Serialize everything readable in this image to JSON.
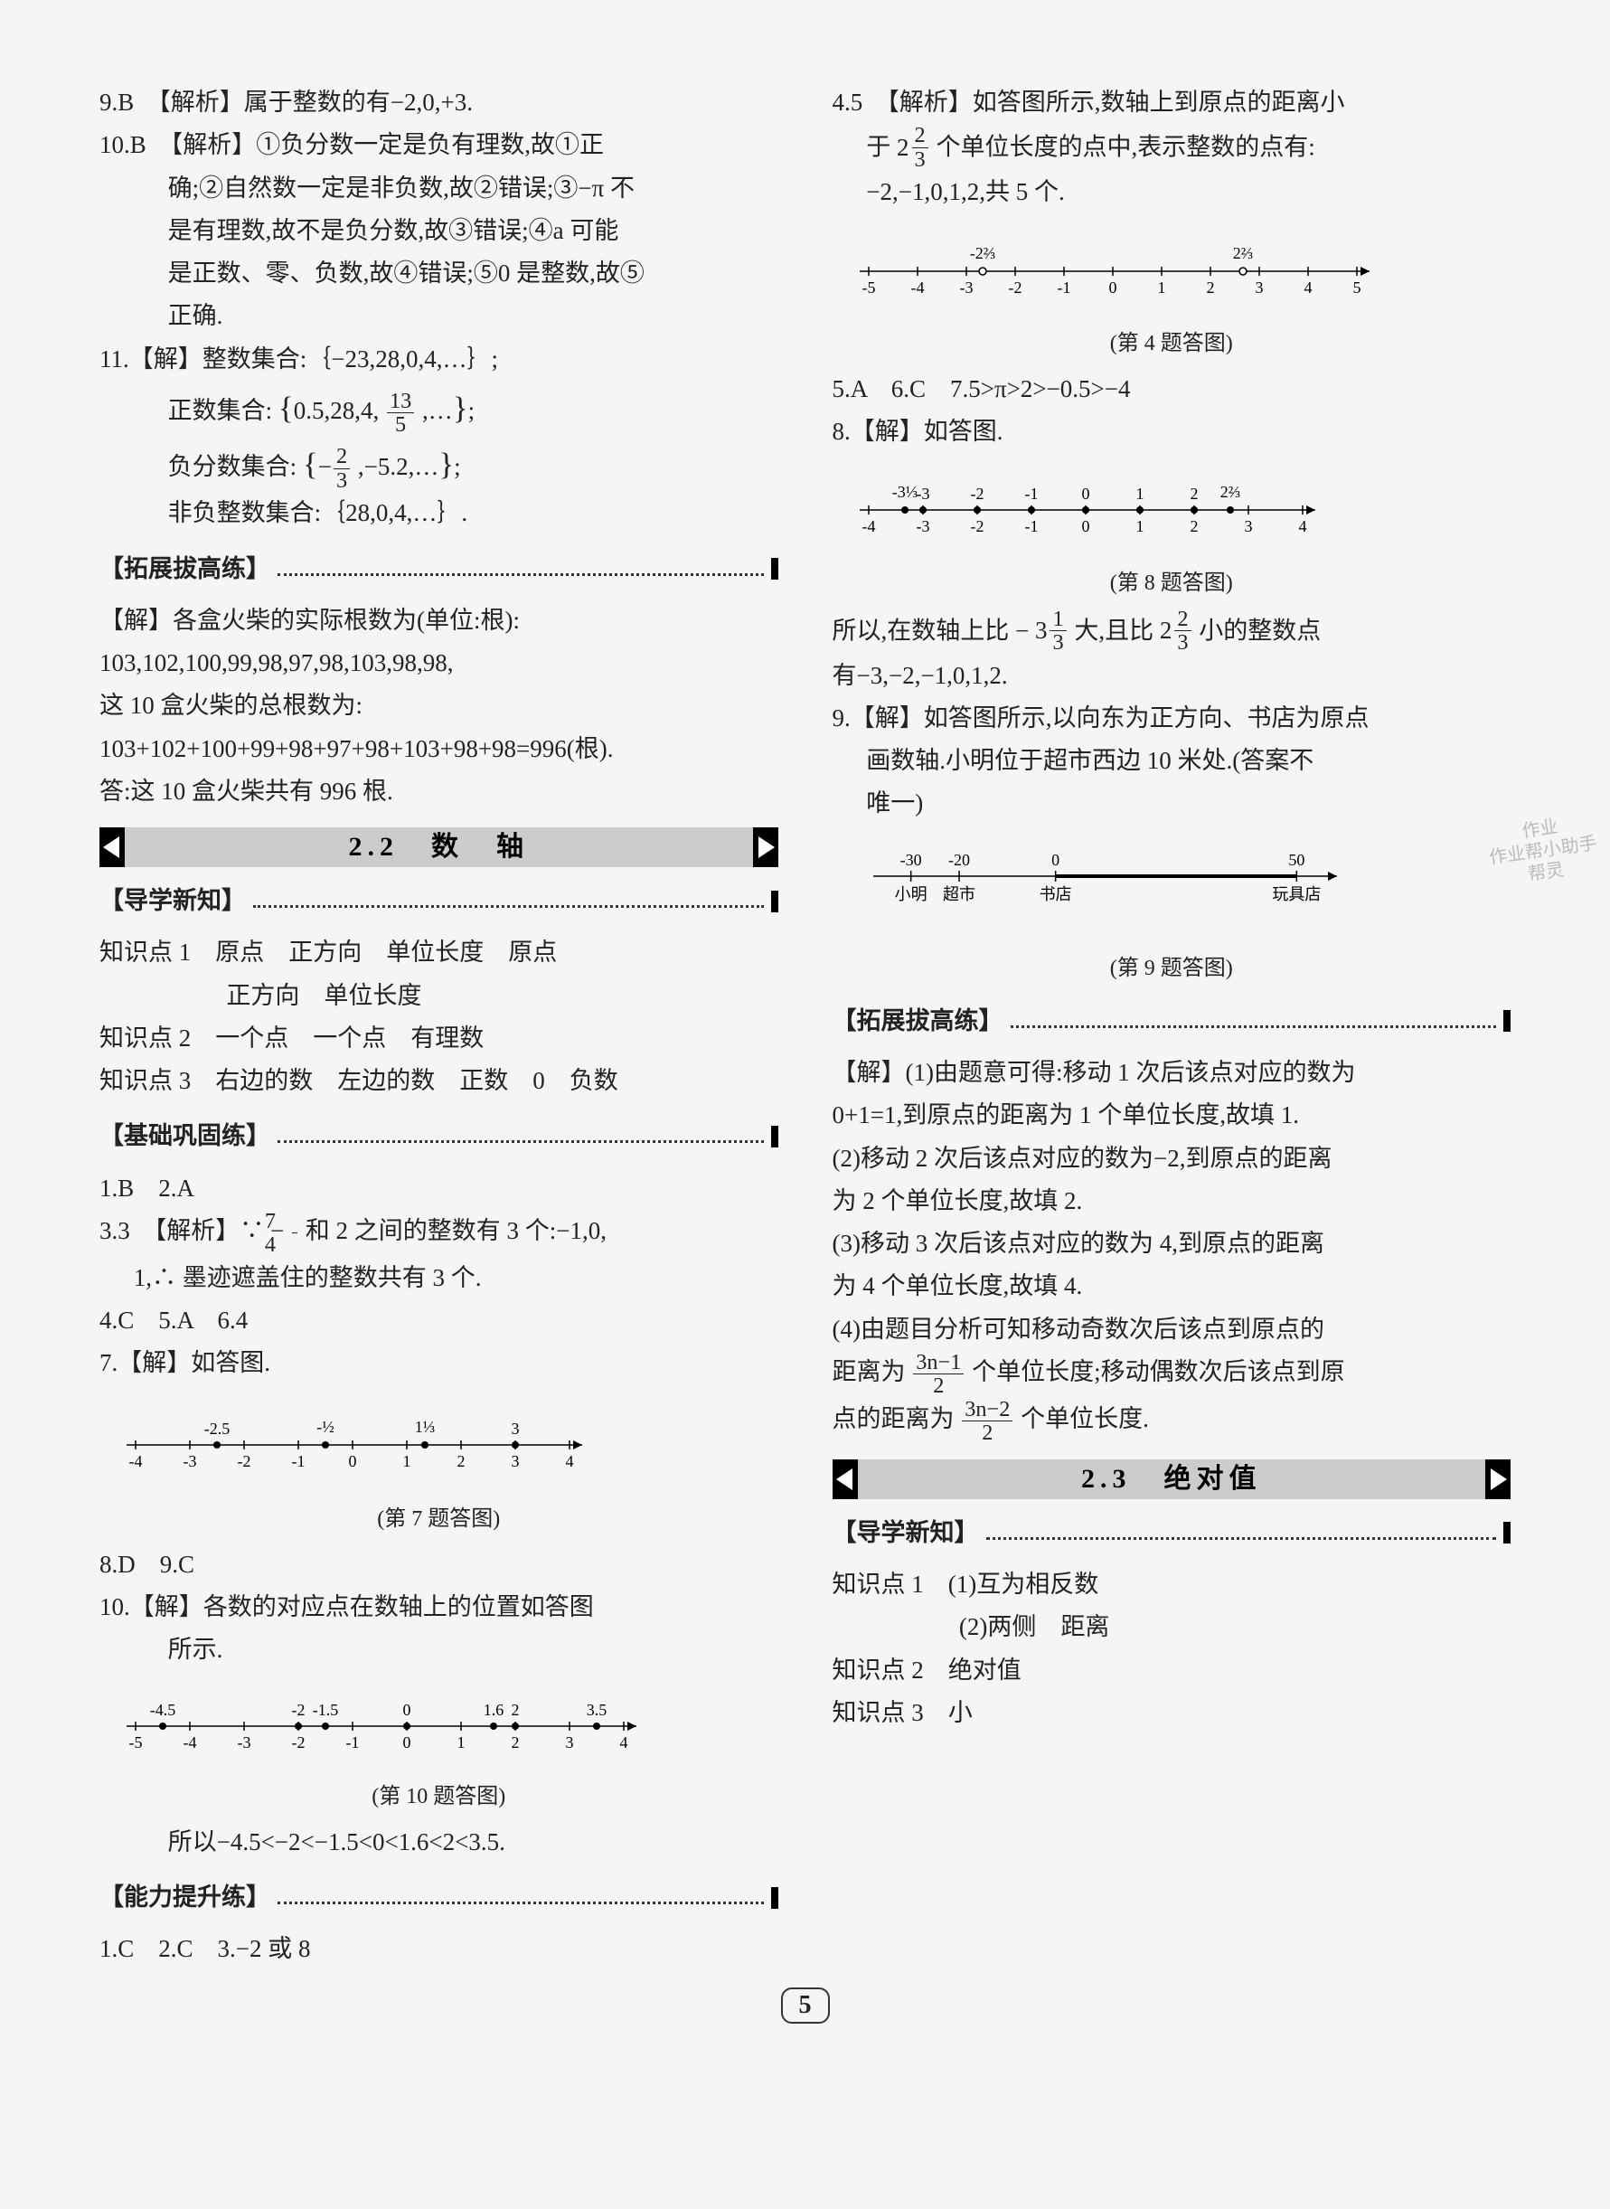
{
  "left": {
    "l9": "9.B　【解析】属于整数的有−2,0,+3.",
    "l10a": "10.B　【解析】①负分数一定是负有理数,故①正",
    "l10b": "确;②自然数一定是非负数,故②错误;③−π 不",
    "l10c": "是有理数,故不是负分数,故③错误;④a 可能",
    "l10d": "是正数、零、负数,故④错误;⑤0 是整数,故⑤",
    "l10e": "正确.",
    "l11a": "11.【解】整数集合:｛−23,28,0,4,…｝;",
    "l11b_pre": "正数集合:",
    "l11b_mid": "0.5,28,4,",
    "l11b_suf": ",…",
    "f13": {
      "n": "13",
      "d": "5"
    },
    "l11c_pre": "负分数集合:",
    "l11c_suf": ",−5.2,…",
    "f23": {
      "n": "2",
      "d": "3"
    },
    "l11d": "非负整数集合:｛28,0,4,…｝.",
    "h_tuo": "【拓展拔高练】",
    "tz1": "【解】各盒火柴的实际根数为(单位:根):",
    "tz2": "103,102,100,99,98,97,98,103,98,98,",
    "tz3": "这 10 盒火柴的总根数为:",
    "tz4": "103+102+100+99+98+97+98+103+98+98=996(根).",
    "tz5": "答:这 10 盒火柴共有 996 根.",
    "ch22": "2.2　数　轴",
    "h_dx": "【导学新知】",
    "k1": "知识点 1　原点　正方向　单位长度　原点",
    "k1b": "正方向　单位长度",
    "k2": "知识点 2　一个点　一个点　有理数",
    "k3": "知识点 3　右边的数　左边的数　正数　0　负数",
    "h_jc": "【基础巩固练】",
    "j1": "1.B　2.A",
    "j3a_pre": "3.3　【解析】∵ −",
    "f74": {
      "n": "7",
      "d": "4"
    },
    "j3a_suf": "和 2 之间的整数有 3 个:−1,0,",
    "j3b": "1,∴ 墨迹遮盖住的整数共有 3 个.",
    "j4": "4.C　5.A　6.4",
    "j7": "7.【解】如答图.",
    "cap7": "(第 7 题答图)",
    "nl7": {
      "ticks": [
        "-4",
        "-3",
        "-2",
        "-1",
        "0",
        "1",
        "2",
        "3",
        "4"
      ],
      "pts": [
        {
          "x": -2.5,
          "label": "-2.5"
        },
        {
          "x": -0.5,
          "label": ""
        },
        {
          "x": 1.333,
          "label": ""
        },
        {
          "x": 3,
          "label": "3"
        }
      ],
      "upper": [
        {
          "x": -0.5,
          "t": "½",
          "neg": true
        },
        {
          "x": 1.333,
          "t": "1⅓"
        }
      ]
    },
    "j8": "8.D　9.C",
    "j10a": "10.【解】各数的对应点在数轴上的位置如答图",
    "j10b": "所示.",
    "cap10": "(第 10 题答图)",
    "nl10": {
      "ticks": [
        "-5",
        "-4",
        "-3",
        "-2",
        "-1",
        "0",
        "1",
        "2",
        "3",
        "4"
      ],
      "pts": [
        {
          "x": -4.5,
          "label": "-4.5"
        },
        {
          "x": -2,
          "label": "-2"
        },
        {
          "x": -1.5,
          "label": "-1.5"
        },
        {
          "x": 0,
          "label": "0"
        },
        {
          "x": 1.6,
          "label": "1.6"
        },
        {
          "x": 2,
          "label": "2"
        },
        {
          "x": 3.5,
          "label": "3.5"
        }
      ]
    },
    "j10c": "所以−4.5<−2<−1.5<0<1.6<2<3.5.",
    "h_nl": "【能力提升练】",
    "n1": "1.C　2.C　3.−2 或 8"
  },
  "right": {
    "r4a_pre": "4.5　【解析】如答图所示,数轴上到原点的距离小",
    "r4b_pre": "于 ",
    "r4b_suf": " 个单位长度的点中,表示整数的点有:",
    "r4c": "−2,−1,0,1,2,共 5 个.",
    "cap4": "(第 4 题答图)",
    "nl4": {
      "ticks": [
        "-5",
        "-4",
        "-3",
        "-2",
        "-1",
        "0",
        "1",
        "2",
        "3",
        "4",
        "5"
      ],
      "open": [
        {
          "x": -2.666
        },
        {
          "x": 2.666
        }
      ],
      "upper": [
        {
          "x": -2.666,
          "t": "2⅔",
          "neg": true
        },
        {
          "x": 2.666,
          "t": "2⅔"
        }
      ]
    },
    "r5": "5.A　6.C　7.5>π>2>−0.5>−4",
    "r8": "8.【解】如答图.",
    "cap8": "(第 8 题答图)",
    "nl8": {
      "ticks": [
        "-4",
        "-3",
        "-2",
        "-1",
        "0",
        "1",
        "2",
        "3",
        "4"
      ],
      "pts": [
        {
          "x": -3.333,
          "label": ""
        },
        {
          "x": -3,
          "label": "-3"
        },
        {
          "x": -2,
          "label": "-2"
        },
        {
          "x": -1,
          "label": "-1"
        },
        {
          "x": 0,
          "label": "0"
        },
        {
          "x": 1,
          "label": "1"
        },
        {
          "x": 2,
          "label": "2"
        },
        {
          "x": 2.666,
          "label": ""
        }
      ],
      "upper": [
        {
          "x": -3.333,
          "t": "3⅓",
          "neg": true
        },
        {
          "x": 2.666,
          "t": "2⅔"
        }
      ]
    },
    "r8b_pre": "所以,在数轴上比 −",
    "r8b_mid": " 大,且比 ",
    "r8b_suf": " 小的整数点",
    "f313": {
      "w": "3",
      "n": "1",
      "d": "3"
    },
    "f223": {
      "w": "2",
      "n": "2",
      "d": "3"
    },
    "r8c": "有−3,−2,−1,0,1,2.",
    "r9a": "9.【解】如答图所示,以向东为正方向、书店为原点",
    "r9b": "画数轴.小明位于超市西边 10 米处.(答案不",
    "r9c": "唯一)",
    "cap9": "(第 9 题答图)",
    "nl9": {
      "labelsTop": [
        "-30",
        "-20",
        "0",
        "50"
      ],
      "labelsBot": [
        "小明",
        "超市",
        "书店",
        "玩具店"
      ]
    },
    "h_tuo": "【拓展拔高练】",
    "t1": "【解】(1)由题意可得:移动 1 次后该点对应的数为",
    "t1b": "0+1=1,到原点的距离为 1 个单位长度,故填 1.",
    "t2": "(2)移动 2 次后该点对应的数为−2,到原点的距离",
    "t2b": "为 2 个单位长度,故填 2.",
    "t3": "(3)移动 3 次后该点对应的数为 4,到原点的距离",
    "t3b": "为 4 个单位长度,故填 4.",
    "t4": "(4)由题目分析可知移动奇数次后该点到原点的",
    "t4b_pre": "距离为",
    "f_odd": {
      "n": "3n−1",
      "d": "2"
    },
    "t4b_suf": "个单位长度;移动偶数次后该点到原",
    "t4c_pre": "点的距离为",
    "f_even": {
      "n": "3n−2",
      "d": "2"
    },
    "t4c_suf": "个单位长度.",
    "ch23": "2.3　绝对值",
    "h_dx": "【导学新知】",
    "rk1": "知识点 1　(1)互为相反数",
    "rk1b": "(2)两侧　距离",
    "rk2": "知识点 2　绝对值",
    "rk3": "知识点 3　小"
  },
  "page": "5",
  "colors": {
    "line": "#000",
    "grey": "#ccc"
  }
}
